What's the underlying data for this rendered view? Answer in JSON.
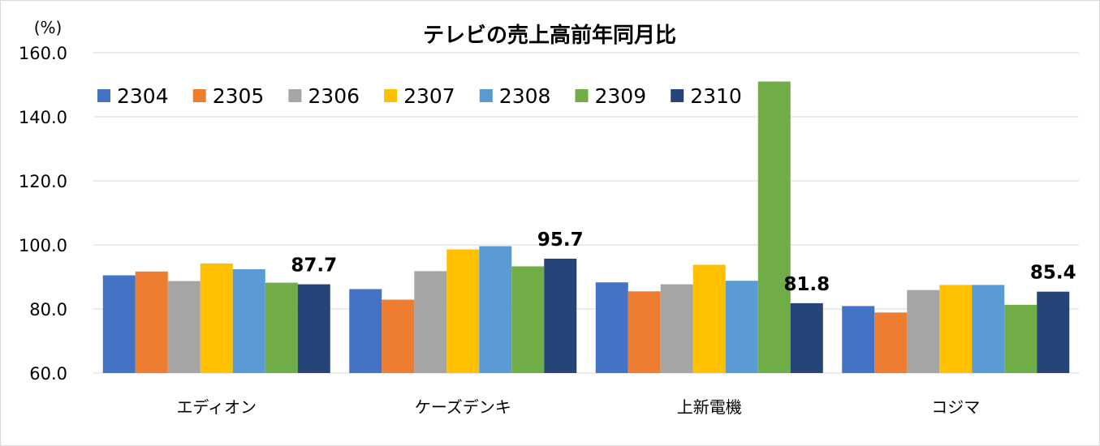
{
  "chart_data": {
    "type": "bar",
    "title": "テレビの売上高前年同月比",
    "ylabel": "(%)",
    "xlabel": "",
    "ylim": [
      60,
      160
    ],
    "yticks": [
      60,
      80,
      100,
      120,
      140,
      160
    ],
    "ytick_labels": [
      "60.0",
      "80.0",
      "100.0",
      "120.0",
      "140.0",
      "160.0"
    ],
    "grid": true,
    "legend_position": "top-left",
    "categories": [
      "エディオン",
      "ケーズデンキ",
      "上新電機",
      "コジマ"
    ],
    "series": [
      {
        "name": "2304",
        "color": "#4472C4",
        "values": [
          90.5,
          86.2,
          88.3,
          80.9
        ]
      },
      {
        "name": "2305",
        "color": "#ED7D31",
        "values": [
          91.7,
          82.9,
          85.5,
          78.9
        ]
      },
      {
        "name": "2306",
        "color": "#A5A5A5",
        "values": [
          88.7,
          91.8,
          87.7,
          85.9
        ]
      },
      {
        "name": "2307",
        "color": "#FFC000",
        "values": [
          94.2,
          98.6,
          93.8,
          87.5
        ]
      },
      {
        "name": "2308",
        "color": "#5B9BD5",
        "values": [
          92.4,
          99.6,
          88.8,
          87.5
        ]
      },
      {
        "name": "2309",
        "color": "#70AD47",
        "values": [
          88.2,
          93.3,
          151.0,
          81.3
        ]
      },
      {
        "name": "2310",
        "color": "#264478",
        "values": [
          87.7,
          95.7,
          81.8,
          85.4
        ]
      }
    ],
    "data_labels": [
      {
        "series": "2310",
        "category": "エディオン",
        "text": "87.7"
      },
      {
        "series": "2310",
        "category": "ケーズデンキ",
        "text": "95.7"
      },
      {
        "series": "2310",
        "category": "上新電機",
        "text": "81.8"
      },
      {
        "series": "2310",
        "category": "コジマ",
        "text": "85.4"
      }
    ]
  }
}
